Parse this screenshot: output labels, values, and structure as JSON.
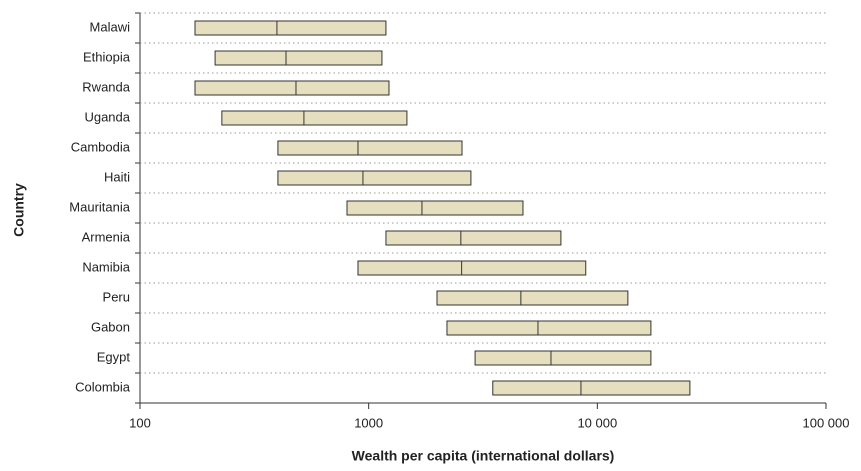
{
  "chart_data": {
    "type": "range",
    "x_label": "Wealth per capita (international dollars)",
    "y_label": "Country",
    "categories": [
      "Malawi",
      "Ethiopia",
      "Rwanda",
      "Uganda",
      "Cambodia",
      "Haiti",
      "Mauritania",
      "Armenia",
      "Namibia",
      "Peru",
      "Gabon",
      "Egypt",
      "Colombia"
    ],
    "low": [
      174,
      213,
      174,
      228,
      401,
      401,
      804,
      1190,
      898,
      1990,
      2200,
      2920,
      3490
    ],
    "median": [
      397,
      435,
      481,
      521,
      898,
      944,
      1710,
      2530,
      2550,
      4630,
      5500,
      6270,
      8480
    ],
    "high": [
      1190,
      1143,
      1227,
      1470,
      2560,
      2800,
      4730,
      6930,
      8900,
      13600,
      17150,
      17150,
      25400
    ],
    "color": "#e6dfbf",
    "xscale": "log",
    "xlim": [
      100,
      100000
    ],
    "xticks": [
      100,
      1000,
      {
        "value": 10000,
        "label": "10 000"
      },
      {
        "value": 100000,
        "label": "100 000"
      }
    ],
    "grid": true
  }
}
